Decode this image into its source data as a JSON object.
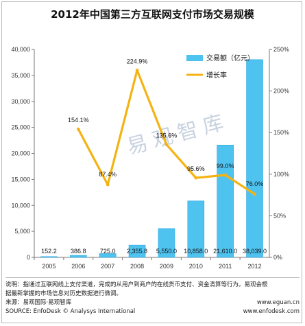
{
  "chart_data": {
    "type": "bar",
    "title": "2012年中国第三方互联网支付市场交易规模",
    "categories": [
      "2005",
      "2006",
      "2007",
      "2008",
      "2009",
      "2010",
      "2011",
      "2012"
    ],
    "series": [
      {
        "name": "交易额（亿元）",
        "type": "bar",
        "axis": "left",
        "values": [
          152.2,
          386.8,
          725.0,
          2355.8,
          5550.0,
          10858.0,
          21610.0,
          38039.0
        ],
        "labels": [
          "152.2",
          "386.8",
          "725.0",
          "2,355.8",
          "5,550.0",
          "10,858.0",
          "21,610.0",
          "38,039.0"
        ]
      },
      {
        "name": "增长率",
        "type": "line",
        "axis": "right",
        "values": [
          null,
          154.1,
          87.4,
          224.9,
          135.6,
          95.6,
          99.0,
          76.0
        ],
        "labels": [
          "",
          "154.1%",
          "87.4%",
          "224.9%",
          "135.6%",
          "95.6%",
          "99.0%",
          "76.0%"
        ]
      }
    ],
    "ylim_left": [
      0,
      40000
    ],
    "yticks_left": [
      "0",
      "5,000",
      "10,000",
      "15,000",
      "20,000",
      "25,000",
      "30,000",
      "35,000",
      "40,000"
    ],
    "ylim_right": [
      0,
      250
    ],
    "yticks_right": [
      "0%",
      "50%",
      "100%",
      "150%",
      "200%",
      "250%"
    ],
    "legend": "top-right",
    "grid": false,
    "colors": {
      "bar": "#4fc3f0",
      "bar_edge": "#2aa6dc",
      "line": "#f5b313",
      "marker": "#f5b313"
    }
  },
  "watermark": "易观智库",
  "footer": {
    "note_line1": "说明：指通过互联网线上支付渠道，完成的从用户到商户的在线货币支付、资金清算等行为。易观会根",
    "note_line2": "据最新掌握的市场信息对历史数据进行微调。",
    "source_cn": "来源：易观国际·易观智库",
    "url_cn": "www.eguan.cn",
    "source_en": "SOURCE: EnfoDesk © Analysys International",
    "url_en": "www.enfodesk.com"
  }
}
